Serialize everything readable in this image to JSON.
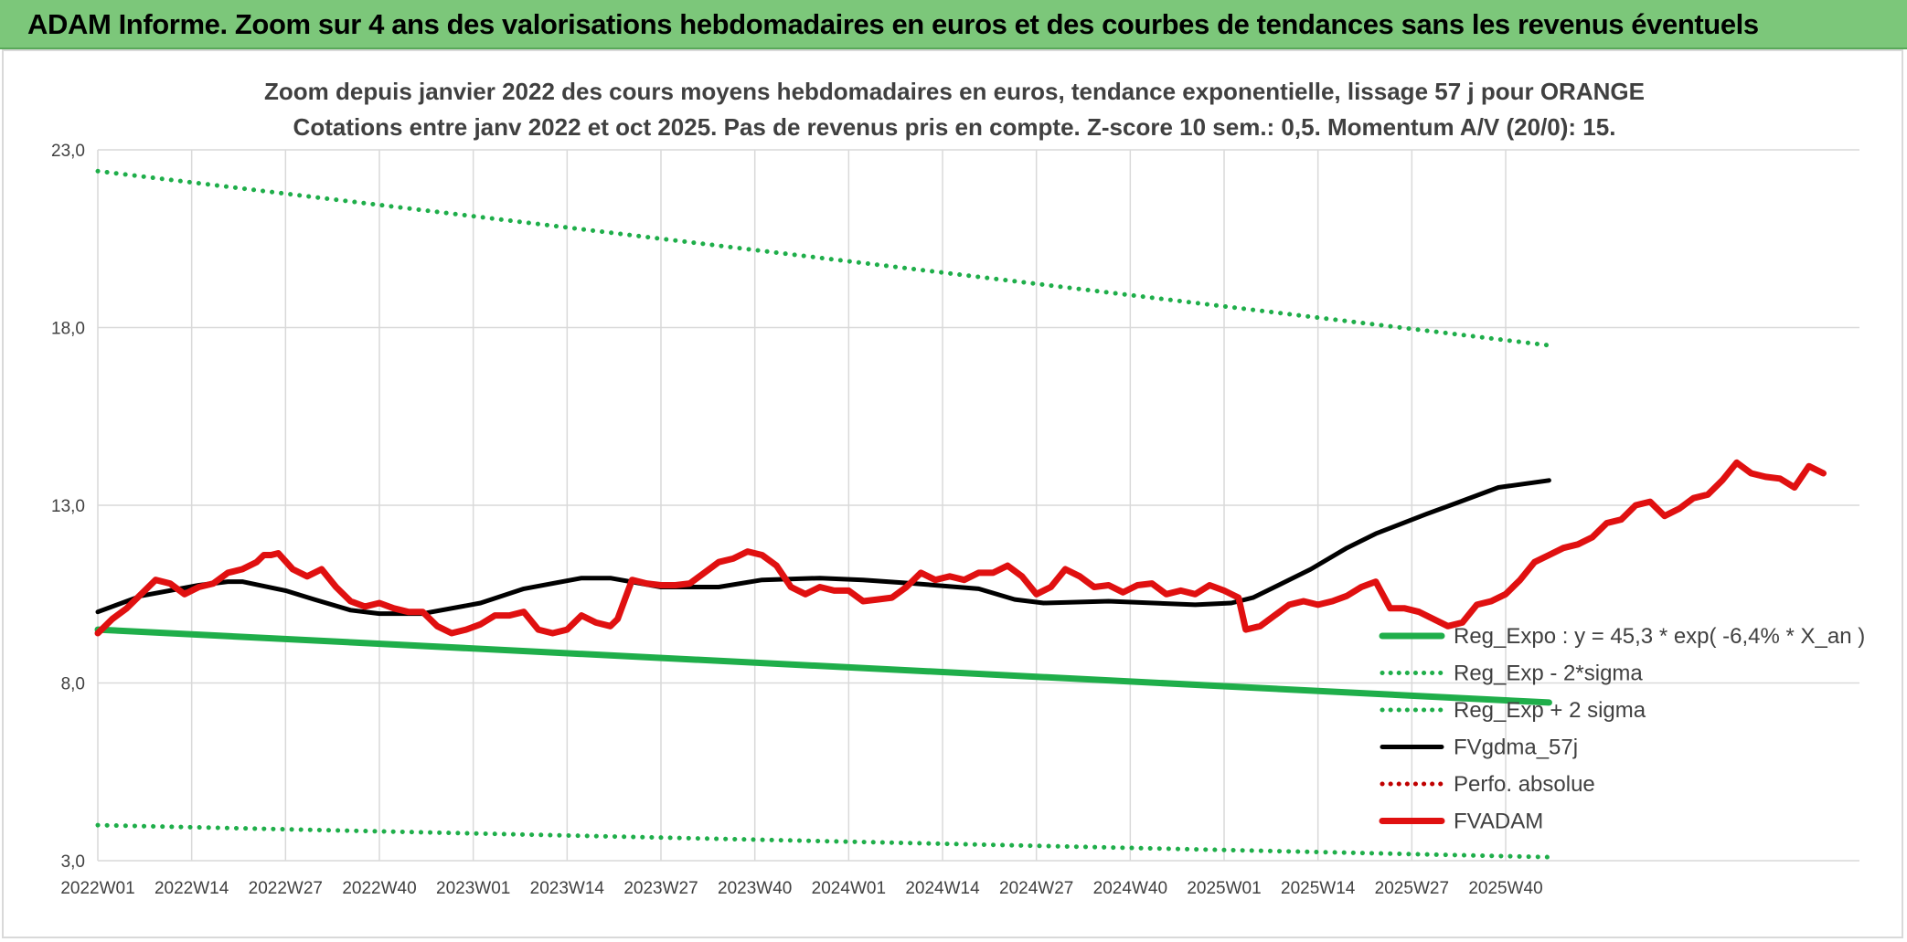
{
  "header": {
    "title": "ADAM Informe. Zoom sur 4 ans des valorisations hebdomadaires en euros et des courbes de tendances sans les revenus éventuels"
  },
  "chart_data": {
    "type": "line",
    "title": "Zoom depuis janvier 2022 des cours moyens hebdomadaires en euros, tendance exponentielle, lissage 57 j pour ORANGE",
    "subtitle": "Cotations entre janv 2022 et oct 2025. Pas de revenus pris en compte. Z-score 10 sem.: 0,5. Momentum A/V (20/0): 15.",
    "xlabel": "",
    "ylabel": "",
    "ylim": [
      3.0,
      23.0
    ],
    "y_ticks": [
      "3,0",
      "8,0",
      "13,0",
      "18,0",
      "23,0"
    ],
    "x_ticks": [
      "2022W01",
      "2022W14",
      "2022W27",
      "2022W40",
      "2023W01",
      "2023W14",
      "2023W27",
      "2023W40",
      "2024W01",
      "2024W14",
      "2024W27",
      "2024W40",
      "2025W01",
      "2025W14",
      "2025W27",
      "2025W40"
    ],
    "week_index_start": "2022W01",
    "week_index_end": "2025W42",
    "legend_position": "bottom-right",
    "grid": true,
    "series": [
      {
        "name": "Reg_Expo : y = 45,3 * exp( -6,4% *  X_an )",
        "color": "#1fae4a",
        "style": "solid",
        "points": [
          [
            0,
            9.5
          ],
          [
            201,
            7.45
          ]
        ]
      },
      {
        "name": "Reg_Exp - 2*sigma",
        "color": "#1fae4a",
        "style": "dotted",
        "points": [
          [
            0,
            4.0
          ],
          [
            201,
            3.1
          ]
        ]
      },
      {
        "name": "Reg_Exp + 2 sigma",
        "color": "#1fae4a",
        "style": "dotted",
        "points": [
          [
            0,
            22.4
          ],
          [
            201,
            17.5
          ]
        ]
      },
      {
        "name": "FVgdma_57j",
        "color": "#000000",
        "style": "solid",
        "points": [
          [
            0,
            10.0
          ],
          [
            6,
            10.45
          ],
          [
            14,
            10.75
          ],
          [
            18,
            10.85
          ],
          [
            20,
            10.85
          ],
          [
            26,
            10.6
          ],
          [
            30,
            10.35
          ],
          [
            35,
            10.05
          ],
          [
            39,
            9.95
          ],
          [
            45,
            9.95
          ],
          [
            53,
            10.25
          ],
          [
            59,
            10.65
          ],
          [
            67,
            10.95
          ],
          [
            71,
            10.95
          ],
          [
            78,
            10.7
          ],
          [
            86,
            10.7
          ],
          [
            92,
            10.9
          ],
          [
            100,
            10.95
          ],
          [
            106,
            10.9
          ],
          [
            113,
            10.8
          ],
          [
            122,
            10.65
          ],
          [
            127,
            10.35
          ],
          [
            131,
            10.25
          ],
          [
            140,
            10.3
          ],
          [
            152,
            10.2
          ],
          [
            157,
            10.25
          ],
          [
            160,
            10.4
          ],
          [
            163,
            10.7
          ],
          [
            168,
            11.2
          ],
          [
            173,
            11.8
          ],
          [
            177,
            12.2
          ],
          [
            184,
            12.75
          ],
          [
            188,
            13.05
          ],
          [
            194,
            13.5
          ],
          [
            201,
            13.7
          ]
        ]
      },
      {
        "name": "Perfo. absolue",
        "color": "#c00000",
        "style": "dotted",
        "points": []
      },
      {
        "name": "FVADAM",
        "color": "#e01010",
        "style": "solid",
        "points": [
          [
            0,
            9.4
          ],
          [
            2,
            9.8
          ],
          [
            4,
            10.1
          ],
          [
            6,
            10.5
          ],
          [
            8,
            10.9
          ],
          [
            10,
            10.8
          ],
          [
            12,
            10.5
          ],
          [
            14,
            10.7
          ],
          [
            16,
            10.8
          ],
          [
            18,
            11.1
          ],
          [
            20,
            11.2
          ],
          [
            22,
            11.4
          ],
          [
            23,
            11.6
          ],
          [
            24,
            11.6
          ],
          [
            25,
            11.65
          ],
          [
            27,
            11.2
          ],
          [
            29,
            11.0
          ],
          [
            31,
            11.2
          ],
          [
            33,
            10.7
          ],
          [
            35,
            10.3
          ],
          [
            37,
            10.15
          ],
          [
            39,
            10.25
          ],
          [
            41,
            10.1
          ],
          [
            43,
            10.0
          ],
          [
            45,
            10.0
          ],
          [
            47,
            9.6
          ],
          [
            49,
            9.4
          ],
          [
            51,
            9.5
          ],
          [
            53,
            9.65
          ],
          [
            55,
            9.9
          ],
          [
            57,
            9.9
          ],
          [
            59,
            10.0
          ],
          [
            61,
            9.5
          ],
          [
            63,
            9.4
          ],
          [
            65,
            9.5
          ],
          [
            67,
            9.9
          ],
          [
            69,
            9.7
          ],
          [
            71,
            9.6
          ],
          [
            72,
            9.8
          ],
          [
            74,
            10.9
          ],
          [
            76,
            10.8
          ],
          [
            78,
            10.75
          ],
          [
            80,
            10.75
          ],
          [
            82,
            10.8
          ],
          [
            84,
            11.1
          ],
          [
            86,
            11.4
          ],
          [
            88,
            11.5
          ],
          [
            90,
            11.7
          ],
          [
            92,
            11.6
          ],
          [
            94,
            11.3
          ],
          [
            96,
            10.7
          ],
          [
            98,
            10.5
          ],
          [
            100,
            10.7
          ],
          [
            102,
            10.6
          ],
          [
            104,
            10.6
          ],
          [
            106,
            10.3
          ],
          [
            108,
            10.35
          ],
          [
            110,
            10.4
          ],
          [
            112,
            10.7
          ],
          [
            114,
            11.1
          ],
          [
            116,
            10.9
          ],
          [
            118,
            11.0
          ],
          [
            120,
            10.9
          ],
          [
            122,
            11.1
          ],
          [
            124,
            11.1
          ],
          [
            126,
            11.3
          ],
          [
            128,
            11.0
          ],
          [
            130,
            10.5
          ],
          [
            132,
            10.7
          ],
          [
            134,
            11.2
          ],
          [
            136,
            11.0
          ],
          [
            138,
            10.7
          ],
          [
            140,
            10.75
          ],
          [
            142,
            10.55
          ],
          [
            144,
            10.75
          ],
          [
            146,
            10.8
          ],
          [
            148,
            10.5
          ],
          [
            150,
            10.6
          ],
          [
            152,
            10.5
          ],
          [
            154,
            10.75
          ],
          [
            156,
            10.6
          ],
          [
            158,
            10.4
          ],
          [
            159,
            9.5
          ],
          [
            161,
            9.6
          ],
          [
            163,
            9.9
          ],
          [
            165,
            10.2
          ],
          [
            167,
            10.3
          ],
          [
            169,
            10.2
          ],
          [
            171,
            10.3
          ],
          [
            173,
            10.45
          ],
          [
            175,
            10.7
          ],
          [
            177,
            10.85
          ],
          [
            179,
            10.1
          ],
          [
            181,
            10.1
          ],
          [
            183,
            10.0
          ],
          [
            185,
            9.8
          ],
          [
            187,
            9.6
          ],
          [
            189,
            9.7
          ],
          [
            191,
            10.2
          ],
          [
            193,
            10.3
          ],
          [
            195,
            10.5
          ],
          [
            197,
            10.9
          ],
          [
            199,
            11.4
          ],
          [
            201,
            11.6
          ],
          [
            203,
            11.8
          ],
          [
            205,
            11.9
          ],
          [
            207,
            12.1
          ],
          [
            209,
            12.5
          ],
          [
            211,
            12.6
          ],
          [
            213,
            13.0
          ],
          [
            215,
            13.1
          ],
          [
            217,
            12.7
          ],
          [
            219,
            12.9
          ],
          [
            221,
            13.2
          ],
          [
            223,
            13.3
          ],
          [
            225,
            13.7
          ],
          [
            227,
            14.2
          ],
          [
            229,
            13.9
          ],
          [
            231,
            13.8
          ],
          [
            233,
            13.75
          ],
          [
            235,
            13.5
          ],
          [
            237,
            14.1
          ],
          [
            239,
            13.9
          ]
        ]
      }
    ]
  }
}
